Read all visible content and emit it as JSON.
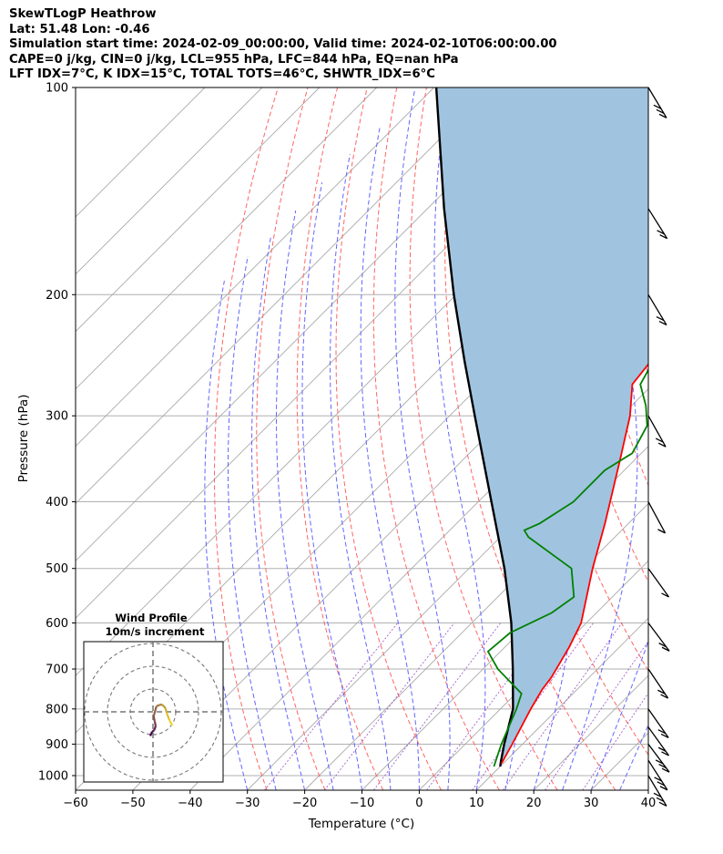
{
  "header": {
    "line1": "SkewTLogP Heathrow",
    "line2": "Lat: 51.48   Lon: -0.46",
    "line3": "Simulation start time: 2024-02-09_00:00:00, Valid time: 2024-02-10T06:00:00.00",
    "line4": "CAPE=0 j/kg, CIN=0 j/kg, LCL=955 hPa, LFC=844 hPa, EQ=nan hPa",
    "line5": "LFT IDX=7°C, K IDX=15°C, TOTAL TOTS=46°C, SHWTR_IDX=6°C"
  },
  "chart_data": {
    "type": "line",
    "subtype": "skew-t log-p",
    "xlabel": "Temperature (°C)",
    "ylabel": "Pressure (hPa)",
    "xlim": [
      -60,
      40
    ],
    "ylim": [
      1050,
      100
    ],
    "yscale": "log",
    "xticks": [
      "−60",
      "−50",
      "−40",
      "−30",
      "−20",
      "−10",
      "0",
      "10",
      "20",
      "30",
      "40"
    ],
    "yticks": [
      "100",
      "200",
      "300",
      "400",
      "500",
      "600",
      "700",
      "800",
      "900",
      "1000"
    ],
    "colors": {
      "temperature": "#ff0000",
      "dewpoint": "#008000",
      "parcel": "#000000",
      "cape_fill": "#a0c4e0",
      "dry_adiabat": "#ff6464",
      "moist_adiabat": "#6464ff",
      "mixing_ratio": "#9a4fc6",
      "isotherm": "#aaaaaa"
    },
    "series": [
      {
        "key": "temperature",
        "p": [
          960,
          900,
          800,
          750,
          720,
          650,
          600,
          500,
          430,
          350,
          300,
          270,
          250,
          220,
          190,
          160,
          145,
          130,
          115,
          100
        ],
        "t": [
          9.7,
          8.2,
          5.3,
          3.9,
          3.4,
          1.2,
          -0.9,
          -8.4,
          -14.1,
          -22.3,
          -28.5,
          -33.6,
          -34.4,
          -36.5,
          -39.4,
          -43.1,
          -47.0,
          -50.4,
          -53.3,
          -57.9
        ]
      },
      {
        "key": "dewpoint",
        "p": [
          970,
          900,
          800,
          760,
          700,
          660,
          620,
          580,
          550,
          500,
          450,
          440,
          430,
          400,
          360,
          340,
          310,
          290,
          270,
          240,
          210,
          200,
          190,
          180,
          175,
          150,
          130,
          100
        ],
        "t": [
          8.9,
          6.3,
          2.8,
          1.0,
          -7.4,
          -12.2,
          -11.6,
          -7.8,
          -6.7,
          -12.1,
          -25.1,
          -27.0,
          -25.5,
          -23.4,
          -23.4,
          -21.6,
          -23.8,
          -27.5,
          -32.2,
          -34.9,
          -38.3,
          -40.1,
          -44.1,
          -48.1,
          -48.4,
          -55.1,
          -61.6,
          -74.3
        ]
      },
      {
        "key": "parcel",
        "p": [
          970,
          955,
          900,
          800,
          700,
          600,
          500,
          400,
          300,
          250,
          200,
          150,
          100
        ],
        "t": [
          10.0,
          9.3,
          6.8,
          2.2,
          -4.8,
          -13.1,
          -23.8,
          -37.7,
          -55.6,
          -66.9,
          -80.4,
          -97.1,
          -119.6
        ]
      }
    ],
    "wind_barbs": [
      {
        "p": 1000,
        "u": -8,
        "v": 12
      },
      {
        "p": 950,
        "u": -10,
        "v": 14
      },
      {
        "p": 900,
        "u": -10,
        "v": 12
      },
      {
        "p": 850,
        "u": -8,
        "v": 10
      },
      {
        "p": 800,
        "u": -7,
        "v": 9
      },
      {
        "p": 700,
        "u": -6,
        "v": 8
      },
      {
        "p": 600,
        "u": -5,
        "v": 6
      },
      {
        "p": 500,
        "u": -4,
        "v": 5
      },
      {
        "p": 400,
        "u": -3,
        "v": 5
      },
      {
        "p": 300,
        "u": -5,
        "v": 8
      },
      {
        "p": 200,
        "u": -6,
        "v": 9
      },
      {
        "p": 150,
        "u": -7,
        "v": 10
      },
      {
        "p": 100,
        "u": -8,
        "v": 12
      }
    ],
    "inset": {
      "title": "Wind Profile",
      "subtitle": "10m/s increment",
      "rings": [
        10,
        20,
        30
      ],
      "hodograph_u": [
        -1.2,
        -0.4,
        0.6,
        1.2,
        0.8,
        0.3,
        1.5,
        2.8,
        4.0,
        5.5,
        6.0,
        7.2,
        8.5
      ],
      "hodograph_v": [
        -10.6,
        -8.8,
        -8.0,
        -6.2,
        -4.4,
        -2.0,
        2.4,
        3.0,
        3.2,
        1.6,
        -0.4,
        -3.6,
        -6.0
      ]
    }
  }
}
